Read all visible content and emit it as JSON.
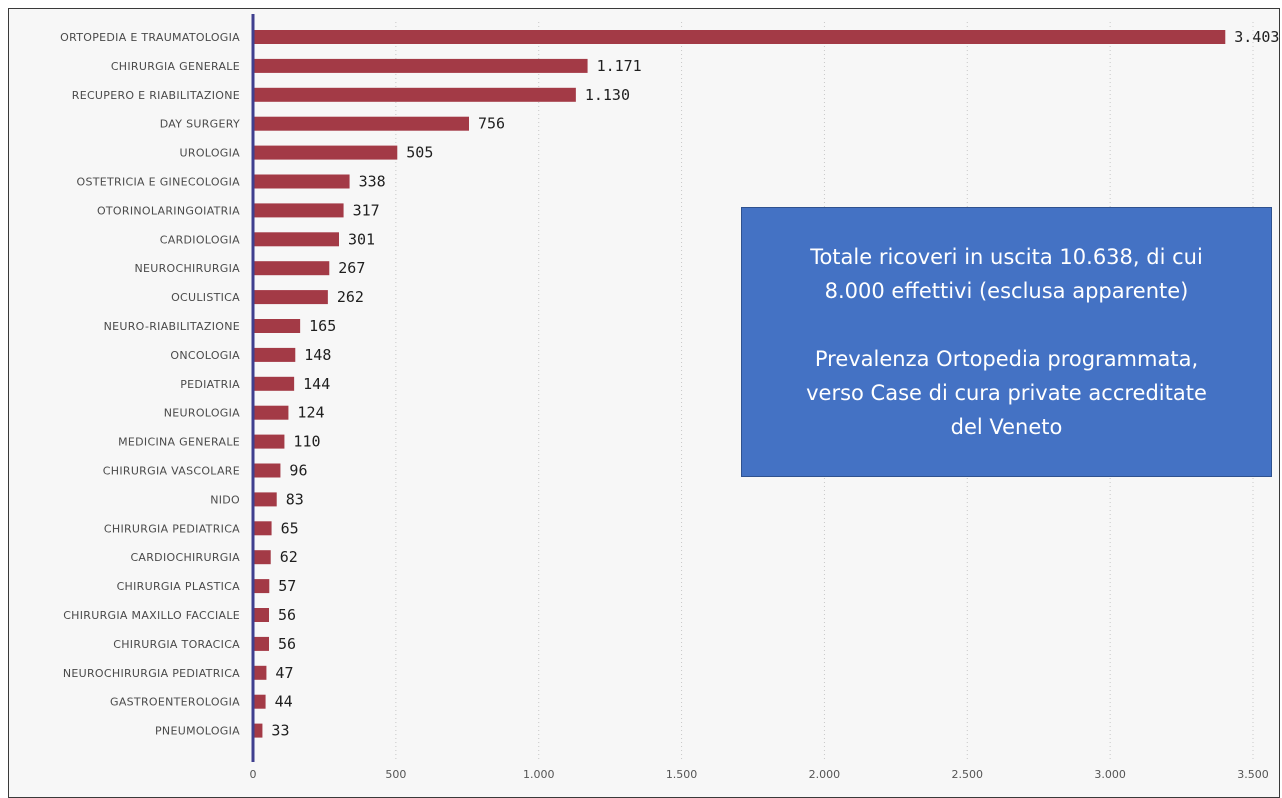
{
  "chart_data": {
    "type": "bar",
    "orientation": "horizontal",
    "categories": [
      "ORTOPEDIA E TRAUMATOLOGIA",
      "CHIRURGIA GENERALE",
      "RECUPERO E RIABILITAZIONE",
      "DAY SURGERY",
      "UROLOGIA",
      "OSTETRICIA E GINECOLOGIA",
      "OTORINOLARINGOIATRIA",
      "CARDIOLOGIA",
      "NEUROCHIRURGIA",
      "OCULISTICA",
      "NEURO-RIABILITAZIONE",
      "ONCOLOGIA",
      "PEDIATRIA",
      "NEUROLOGIA",
      "MEDICINA GENERALE",
      "CHIRURGIA VASCOLARE",
      "NIDO",
      "CHIRURGIA PEDIATRICA",
      "CARDIOCHIRURGIA",
      "CHIRURGIA PLASTICA",
      "CHIRURGIA MAXILLO FACCIALE",
      "CHIRURGIA TORACICA",
      "NEUROCHIRURGIA PEDIATRICA",
      "GASTROENTEROLOGIA",
      "PNEUMOLOGIA"
    ],
    "values": [
      3403,
      1171,
      1130,
      756,
      505,
      338,
      317,
      301,
      267,
      262,
      165,
      148,
      144,
      124,
      110,
      96,
      83,
      65,
      62,
      57,
      56,
      56,
      47,
      44,
      33
    ],
    "value_labels": [
      "3.403",
      "1.171",
      "1.130",
      "756",
      "505",
      "338",
      "317",
      "301",
      "267",
      "262",
      "165",
      "148",
      "144",
      "124",
      "110",
      "96",
      "83",
      "65",
      "62",
      "57",
      "56",
      "56",
      "47",
      "44",
      "33"
    ],
    "xlim": [
      0,
      3500
    ],
    "x_ticks": [
      0,
      500,
      1000,
      1500,
      2000,
      2500,
      3000,
      3500
    ],
    "x_tick_labels": [
      "0",
      "500",
      "1.000",
      "1.500",
      "2.000",
      "2.500",
      "3.000",
      "3.500"
    ],
    "title": "",
    "xlabel": "",
    "ylabel": "",
    "grid": "vertical dotted",
    "bar_color": "#a33a46",
    "axis_color": "#3f3f8f"
  },
  "callout": {
    "line1": "Totale ricoveri in uscita 10.638, di cui",
    "line2": "8.000 effettivi (esclusa apparente)",
    "line3": "Prevalenza Ortopedia programmata,",
    "line4": "verso Case di cura private accreditate",
    "line5": "del Veneto",
    "background": "#4472c4",
    "text_color": "#ffffff"
  }
}
